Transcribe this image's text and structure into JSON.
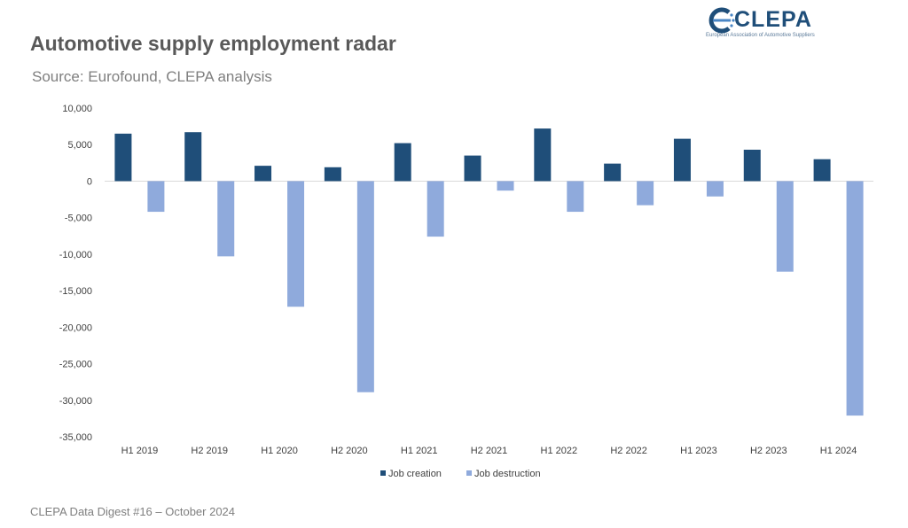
{
  "header": {
    "title": "Automotive supply employment radar",
    "subtitle": "Source: Eurofound, CLEPA analysis"
  },
  "logo": {
    "name": "CLEPA",
    "tagline": "European Association of Automotive Suppliers"
  },
  "footer": {
    "text": "CLEPA Data Digest #16 – October 2024"
  },
  "chart_data": {
    "type": "bar",
    "title": "Automotive supply employment radar",
    "subtitle": "Source: Eurofound, CLEPA analysis",
    "categories": [
      "H1 2019",
      "H2 2019",
      "H1 2020",
      "H2 2020",
      "H1 2021",
      "H2 2021",
      "H1 2022",
      "H2 2022",
      "H1 2023",
      "H2 2023",
      "H1 2024"
    ],
    "series": [
      {
        "name": "Job creation",
        "color": "#1f4e79",
        "values": [
          6500,
          6700,
          2100,
          1900,
          5200,
          3500,
          7200,
          2400,
          5800,
          4300,
          3000
        ]
      },
      {
        "name": "Job destruction",
        "color": "#8faadc",
        "values": [
          -4200,
          -10300,
          -17200,
          -28900,
          -7600,
          -1300,
          -4200,
          -3300,
          -2100,
          -12400,
          -32100
        ]
      }
    ],
    "yticks": [
      "10,000",
      "5,000",
      "0",
      "-5,000",
      "-10,000",
      "-15,000",
      "-20,000",
      "-25,000",
      "-30,000",
      "-35,000"
    ],
    "ylim": [
      -35000,
      10000
    ],
    "xlabel": "",
    "ylabel": "",
    "grid": false,
    "legend": "bottom"
  }
}
